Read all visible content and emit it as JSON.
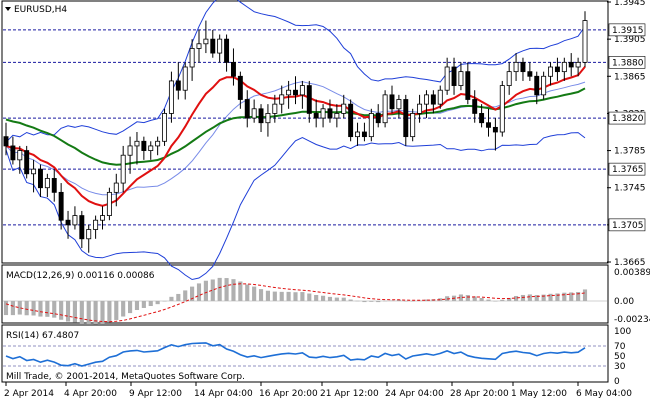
{
  "chart_header": {
    "symbol_timeframe": "EURUSD,H4"
  },
  "indicators": {
    "macd_label": "MACD(12,26,9) 0.00116 0.00086",
    "rsi_label": "RSI(14) 67.4807",
    "copyright": "Mill Trade, © 2001-2014, MetaQuotes Software Corp."
  },
  "colors": {
    "candles": "#000000",
    "bollinger": "#1f3fd8",
    "ma_red": "#e01010",
    "ma_green": "#147a14",
    "hline": "#1a1aa0",
    "macd_hist": "#b0b0b0",
    "macd_signal": "#e01010",
    "rsi_line": "#1e6fd6",
    "rsi_levels": "#9090c0",
    "frame": "#000000"
  },
  "chart_data": {
    "type": "candlestick",
    "price_axis": {
      "ticks": [
        "1.3945",
        "1.3905",
        "1.3865",
        "1.3825",
        "1.3785",
        "1.3745",
        "1.3705",
        "1.3665"
      ],
      "range": [
        1.3665,
        1.3945
      ]
    },
    "horizontal_levels": [
      {
        "value": 1.3915,
        "label": "1.3915"
      },
      {
        "value": 1.388,
        "label": "1.3880"
      },
      {
        "value": 1.382,
        "label": "1.3820"
      },
      {
        "value": 1.3765,
        "label": "1.3765"
      },
      {
        "value": 1.3705,
        "label": "1.3705"
      }
    ],
    "time_axis": [
      "2 Apr 2014",
      "4 Apr 20:00",
      "9 Apr 12:00",
      "14 Apr 04:00",
      "16 Apr 20:00",
      "21 Apr 12:00",
      "24 Apr 04:00",
      "28 Apr 20:00",
      "1 May 12:00",
      "6 May 04:00"
    ],
    "candles": [
      [
        1.38,
        1.3815,
        1.378,
        1.379
      ],
      [
        1.379,
        1.38,
        1.377,
        1.3775
      ],
      [
        1.3775,
        1.379,
        1.376,
        1.3785
      ],
      [
        1.3785,
        1.379,
        1.3755,
        1.376
      ],
      [
        1.376,
        1.3775,
        1.374,
        1.3765
      ],
      [
        1.3765,
        1.377,
        1.3735,
        1.3745
      ],
      [
        1.3745,
        1.376,
        1.3735,
        1.3755
      ],
      [
        1.3755,
        1.3765,
        1.373,
        1.374
      ],
      [
        1.374,
        1.375,
        1.37,
        1.371
      ],
      [
        1.371,
        1.372,
        1.369,
        1.3705
      ],
      [
        1.3705,
        1.3725,
        1.37,
        1.3715
      ],
      [
        1.3715,
        1.372,
        1.368,
        1.369
      ],
      [
        1.369,
        1.3705,
        1.3675,
        1.37
      ],
      [
        1.37,
        1.3715,
        1.369,
        1.371
      ],
      [
        1.371,
        1.3725,
        1.37,
        1.3715
      ],
      [
        1.3715,
        1.3745,
        1.371,
        1.374
      ],
      [
        1.374,
        1.376,
        1.3725,
        1.375
      ],
      [
        1.375,
        1.379,
        1.374,
        1.378
      ],
      [
        1.378,
        1.38,
        1.376,
        1.379
      ],
      [
        1.379,
        1.3805,
        1.377,
        1.3795
      ],
      [
        1.3795,
        1.38,
        1.3775,
        1.3785
      ],
      [
        1.3785,
        1.3795,
        1.3775,
        1.379
      ],
      [
        1.379,
        1.38,
        1.378,
        1.3795
      ],
      [
        1.3795,
        1.383,
        1.379,
        1.3825
      ],
      [
        1.3825,
        1.387,
        1.3815,
        1.386
      ],
      [
        1.386,
        1.388,
        1.384,
        1.385
      ],
      [
        1.385,
        1.388,
        1.384,
        1.3875
      ],
      [
        1.3875,
        1.3905,
        1.386,
        1.3895
      ],
      [
        1.3895,
        1.3915,
        1.388,
        1.39
      ],
      [
        1.39,
        1.3925,
        1.389,
        1.3905
      ],
      [
        1.3905,
        1.3915,
        1.3885,
        1.389
      ],
      [
        1.389,
        1.391,
        1.388,
        1.3905
      ],
      [
        1.3905,
        1.391,
        1.387,
        1.388
      ],
      [
        1.388,
        1.3895,
        1.3855,
        1.3865
      ],
      [
        1.3865,
        1.387,
        1.383,
        1.384
      ],
      [
        1.384,
        1.385,
        1.381,
        1.382
      ],
      [
        1.382,
        1.384,
        1.3815,
        1.383
      ],
      [
        1.383,
        1.3835,
        1.3805,
        1.3815
      ],
      [
        1.3815,
        1.3835,
        1.38,
        1.3825
      ],
      [
        1.3825,
        1.3845,
        1.3815,
        1.3835
      ],
      [
        1.3835,
        1.3855,
        1.3825,
        1.3845
      ],
      [
        1.3845,
        1.386,
        1.383,
        1.385
      ],
      [
        1.385,
        1.3865,
        1.3835,
        1.3845
      ],
      [
        1.3845,
        1.386,
        1.383,
        1.3855
      ],
      [
        1.3855,
        1.386,
        1.3815,
        1.3825
      ],
      [
        1.3825,
        1.384,
        1.381,
        1.382
      ],
      [
        1.382,
        1.3835,
        1.381,
        1.383
      ],
      [
        1.383,
        1.384,
        1.3815,
        1.382
      ],
      [
        1.382,
        1.3835,
        1.381,
        1.3825
      ],
      [
        1.3825,
        1.3845,
        1.382,
        1.3835
      ],
      [
        1.3835,
        1.384,
        1.3795,
        1.38
      ],
      [
        1.38,
        1.3815,
        1.379,
        1.3805
      ],
      [
        1.3805,
        1.3815,
        1.3795,
        1.38
      ],
      [
        1.38,
        1.383,
        1.3795,
        1.3825
      ],
      [
        1.3825,
        1.3835,
        1.381,
        1.3815
      ],
      [
        1.3815,
        1.385,
        1.381,
        1.3845
      ],
      [
        1.3845,
        1.3855,
        1.3825,
        1.383
      ],
      [
        1.383,
        1.3845,
        1.382,
        1.384
      ],
      [
        1.384,
        1.3845,
        1.379,
        1.38
      ],
      [
        1.38,
        1.383,
        1.3795,
        1.3825
      ],
      [
        1.3825,
        1.3845,
        1.3815,
        1.3835
      ],
      [
        1.3835,
        1.385,
        1.382,
        1.3845
      ],
      [
        1.3845,
        1.385,
        1.3825,
        1.3835
      ],
      [
        1.3835,
        1.3855,
        1.383,
        1.385
      ],
      [
        1.385,
        1.3885,
        1.3845,
        1.3875
      ],
      [
        1.3875,
        1.3885,
        1.3845,
        1.3855
      ],
      [
        1.3855,
        1.388,
        1.385,
        1.387
      ],
      [
        1.387,
        1.388,
        1.3835,
        1.384
      ],
      [
        1.384,
        1.385,
        1.3815,
        1.3825
      ],
      [
        1.3825,
        1.3835,
        1.381,
        1.3815
      ],
      [
        1.3815,
        1.383,
        1.38,
        1.381
      ],
      [
        1.381,
        1.382,
        1.3785,
        1.3805
      ],
      [
        1.3805,
        1.386,
        1.38,
        1.3855
      ],
      [
        1.3855,
        1.388,
        1.3845,
        1.387
      ],
      [
        1.387,
        1.389,
        1.386,
        1.388
      ],
      [
        1.388,
        1.3885,
        1.386,
        1.387
      ],
      [
        1.387,
        1.388,
        1.386,
        1.3865
      ],
      [
        1.3865,
        1.387,
        1.3835,
        1.3845
      ],
      [
        1.3845,
        1.387,
        1.384,
        1.3865
      ],
      [
        1.3865,
        1.388,
        1.3855,
        1.3875
      ],
      [
        1.3875,
        1.3885,
        1.386,
        1.387
      ],
      [
        1.387,
        1.3885,
        1.386,
        1.388
      ],
      [
        1.388,
        1.389,
        1.3865,
        1.3875
      ],
      [
        1.3875,
        1.3885,
        1.3865,
        1.388
      ],
      [
        1.388,
        1.3935,
        1.3875,
        1.3925
      ]
    ]
  }
}
